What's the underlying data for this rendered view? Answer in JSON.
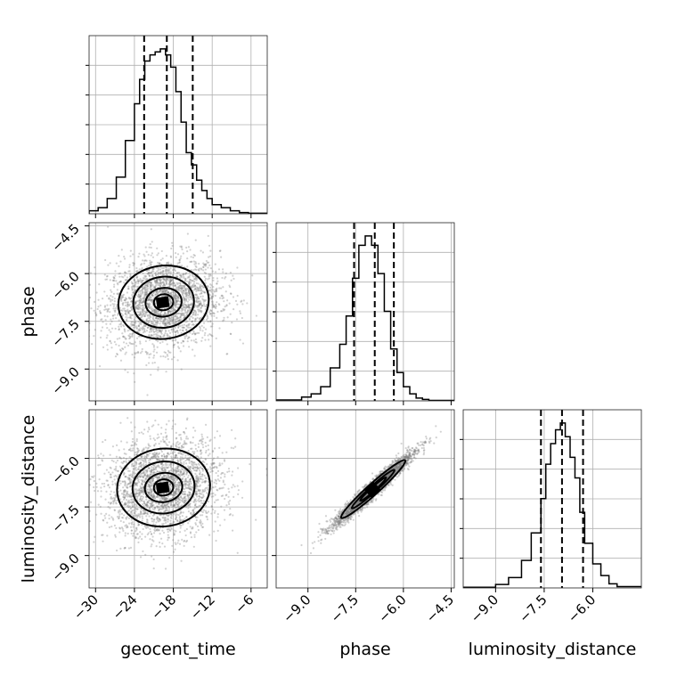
{
  "chart_data": {
    "type": "corner",
    "parameters": [
      "geocent_time",
      "phase",
      "luminosity_distance"
    ],
    "axis_labels": {
      "geocent_time": "geocent_time",
      "phase": "phase",
      "luminosity_distance": "luminosity_distance"
    },
    "ranges": {
      "geocent_time": [
        -31,
        -3.5
      ],
      "phase": [
        -10.0,
        -4.4
      ],
      "luminosity_distance": [
        -10.0,
        -4.5
      ]
    },
    "ticks": {
      "geocent_time": [
        -30,
        -24,
        -18,
        -12,
        -6
      ],
      "phase": [
        -9.0,
        -7.5,
        -6.0,
        -4.5
      ],
      "luminosity_distance": [
        -9.0,
        -7.5,
        -6.0
      ]
    },
    "tick_labels": {
      "geocent_time": [
        "−30",
        "−24",
        "−18",
        "−12",
        "−6"
      ],
      "phase": [
        "−9.0",
        "−7.5",
        "−6.0",
        "−4.5"
      ],
      "luminosity_distance": [
        "−9.0",
        "−7.5",
        "−6.0"
      ]
    },
    "grid": true,
    "quantiles": {
      "geocent_time": [
        -22.5,
        -19.0,
        -15.0
      ],
      "phase": [
        -7.55,
        -6.9,
        -6.3
      ],
      "luminosity_distance": [
        -7.6,
        -6.95,
        -6.3
      ]
    },
    "histograms": {
      "geocent_time": {
        "edges": [
          -31.0,
          -29.6,
          -28.2,
          -26.8,
          -25.4,
          -24.0,
          -23.2,
          -22.4,
          -21.6,
          -20.8,
          -20.0,
          -19.2,
          -18.4,
          -17.6,
          -16.8,
          -16.0,
          -15.2,
          -14.4,
          -13.6,
          -12.8,
          -12.0,
          -10.6,
          -9.2,
          -7.8,
          -6.4,
          -5.0,
          -3.5
        ],
        "counts": [
          0.5,
          1,
          2.5,
          6,
          12,
          18,
          22,
          25,
          26,
          26.5,
          27,
          26,
          24,
          20,
          15,
          10,
          8,
          5.5,
          3.8,
          2.5,
          1.5,
          1,
          0.5,
          0.2,
          0.1,
          0.1
        ]
      },
      "phase": {
        "edges": [
          -10.0,
          -9.2,
          -8.9,
          -8.6,
          -8.3,
          -8.0,
          -7.8,
          -7.6,
          -7.4,
          -7.2,
          -7.0,
          -6.8,
          -6.6,
          -6.4,
          -6.2,
          -6.0,
          -5.8,
          -5.6,
          -5.4,
          -5.2,
          -4.4
        ],
        "counts": [
          0.2,
          0.8,
          1.5,
          3,
          7,
          12,
          18,
          26,
          33,
          35,
          33,
          27,
          19,
          11,
          6,
          3,
          1.5,
          0.6,
          0.3,
          0.1
        ]
      },
      "luminosity_distance": {
        "edges": [
          -10.0,
          -9.0,
          -8.6,
          -8.2,
          -7.9,
          -7.6,
          -7.45,
          -7.3,
          -7.15,
          -7.0,
          -6.85,
          -6.7,
          -6.55,
          -6.4,
          -6.25,
          -6.0,
          -5.75,
          -5.5,
          -5.25,
          -4.5
        ],
        "counts": [
          0.1,
          0.5,
          1.5,
          4,
          8,
          13,
          18,
          21,
          23,
          24,
          22,
          19,
          16,
          11,
          6.5,
          3.5,
          1.8,
          0.6,
          0.2
        ]
      }
    },
    "contours_2d": [
      {
        "x": "geocent_time",
        "y": "phase",
        "center": [
          -19.5,
          -6.9
        ],
        "levels": [
          {
            "rx": 7.0,
            "ry": 1.15,
            "angle": 8
          },
          {
            "rx": 4.7,
            "ry": 0.8,
            "angle": 8
          },
          {
            "rx": 2.8,
            "ry": 0.45,
            "angle": 8
          },
          {
            "rx": 1.5,
            "ry": 0.25,
            "angle": 8
          }
        ]
      },
      {
        "x": "geocent_time",
        "y": "luminosity_distance",
        "center": [
          -19.5,
          -6.9
        ],
        "levels": [
          {
            "rx": 7.2,
            "ry": 1.2,
            "angle": 8
          },
          {
            "rx": 4.8,
            "ry": 0.8,
            "angle": 8
          },
          {
            "rx": 2.9,
            "ry": 0.45,
            "angle": 8
          },
          {
            "rx": 1.5,
            "ry": 0.25,
            "angle": 8
          }
        ]
      },
      {
        "x": "phase",
        "y": "luminosity_distance",
        "center": [
          -6.95,
          -6.95
        ],
        "levels": [
          {
            "rx": 1.35,
            "ry": 0.17,
            "angle": 42
          },
          {
            "rx": 0.9,
            "ry": 0.1,
            "angle": 42
          },
          {
            "rx": 0.55,
            "ry": 0.06,
            "angle": 42
          }
        ]
      }
    ]
  }
}
